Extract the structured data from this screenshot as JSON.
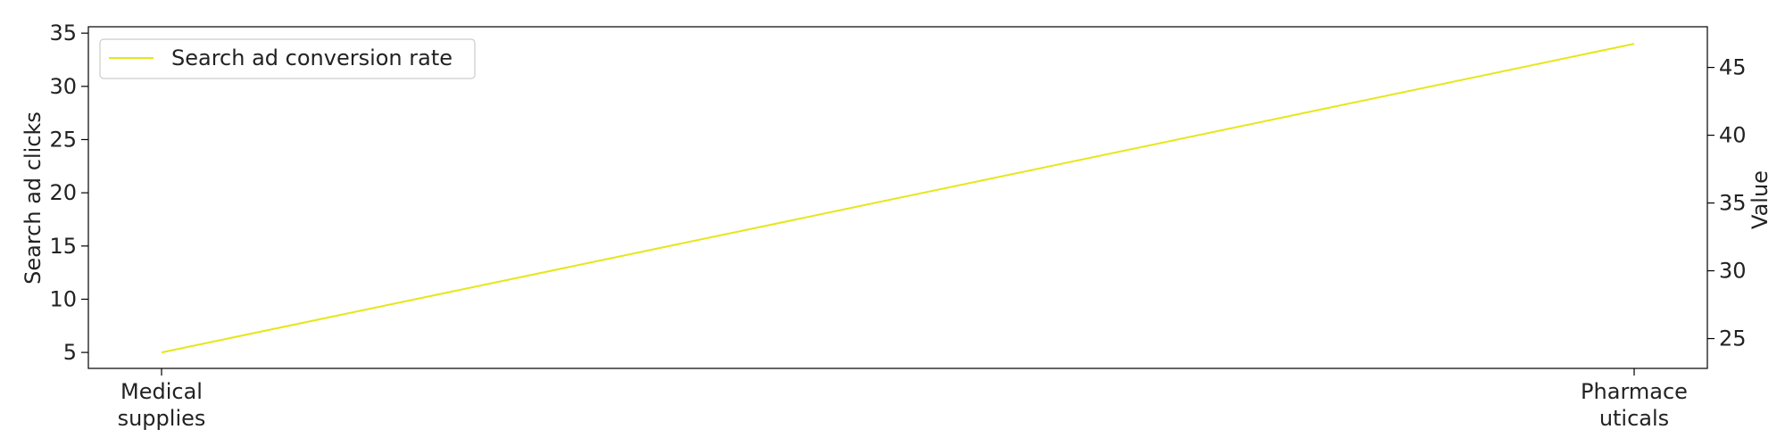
{
  "chart_data": {
    "type": "line",
    "categories": [
      "Medical\nsupplies",
      "Pharmace\nuticals"
    ],
    "series": [
      {
        "name": "Search ad conversion rate",
        "values": [
          5,
          34
        ],
        "color": "#e6e619"
      }
    ],
    "ylabel": "Search ad clicks",
    "ylim": [
      3.5,
      35.6
    ],
    "yticks": [
      5,
      10,
      15,
      20,
      25,
      30,
      35
    ],
    "ylabel_right": "Value",
    "ylim_right": [
      22.8,
      48
    ],
    "yticks_right": [
      25,
      30,
      35,
      40,
      45
    ],
    "legend": "top-left",
    "grid": false
  }
}
